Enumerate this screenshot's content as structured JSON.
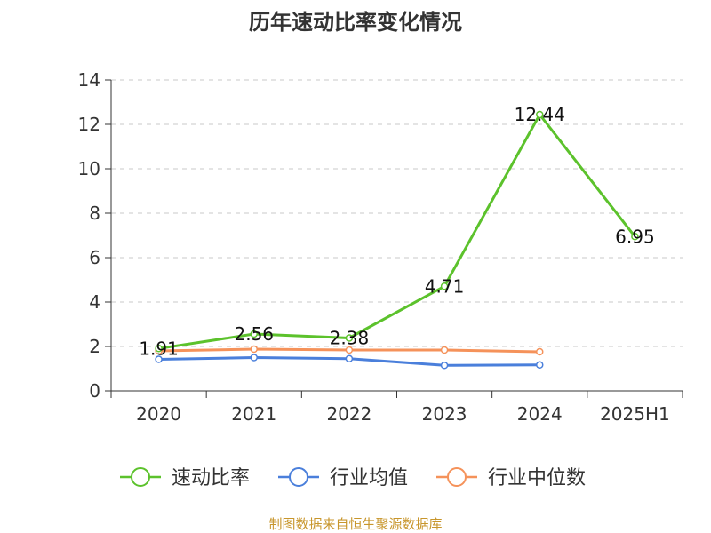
{
  "chart_data": {
    "type": "line",
    "title": "历年速动比率变化情况",
    "categories": [
      "2020",
      "2021",
      "2022",
      "2023",
      "2024",
      "2025H1"
    ],
    "ylim": [
      0,
      14
    ],
    "yticks": [
      0,
      2,
      4,
      6,
      8,
      10,
      12,
      14
    ],
    "grid": true,
    "legend_position": "bottom",
    "series": [
      {
        "name": "速动比率",
        "color": "#5cc22c",
        "values": [
          1.91,
          2.56,
          2.38,
          4.71,
          12.44,
          6.95
        ],
        "labels": [
          "1.91",
          "2.56",
          "2.38",
          "4.71",
          "12.44",
          "6.95"
        ],
        "show_labels": true
      },
      {
        "name": "行业均值",
        "color": "#4a7fdb",
        "values": [
          1.42,
          1.5,
          1.45,
          1.15,
          1.17,
          null
        ],
        "show_labels": false
      },
      {
        "name": "行业中位数",
        "color": "#f5925a",
        "values": [
          1.8,
          1.88,
          1.84,
          1.84,
          1.76,
          null
        ],
        "show_labels": false
      }
    ]
  },
  "source": {
    "text": "制图数据来自恒生聚源数据库",
    "color": "#c8962c"
  }
}
